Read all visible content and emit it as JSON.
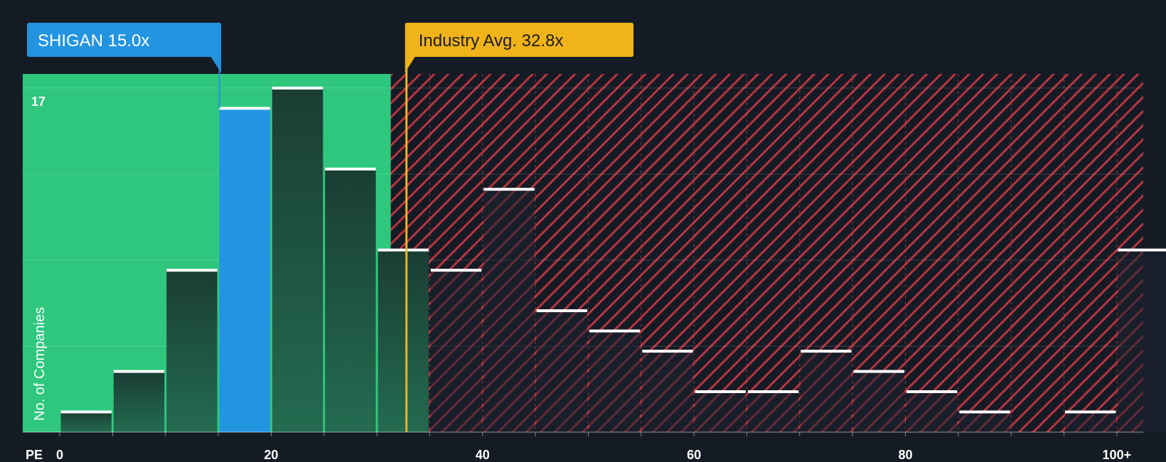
{
  "chart_data": {
    "type": "bar",
    "title": "",
    "xlabel": "PE",
    "ylabel": "No. of Companies",
    "x_ticks": [
      "0",
      "20",
      "40",
      "60",
      "80",
      "100+"
    ],
    "x_tick_values": [
      0,
      20,
      40,
      60,
      80,
      100
    ],
    "xlim": [
      -3.5,
      102.5
    ],
    "ylim": [
      0,
      17.7
    ],
    "y_ticks": [
      {
        "value": 17,
        "label": "17"
      }
    ],
    "gridlines_y": [
      4.25,
      8.5,
      12.75,
      17
    ],
    "bin_width": 5,
    "bins": [
      {
        "start": 0,
        "value": 1
      },
      {
        "start": 5,
        "value": 3
      },
      {
        "start": 10,
        "value": 8
      },
      {
        "start": 15,
        "value": 16,
        "highlight": true
      },
      {
        "start": 20,
        "value": 17
      },
      {
        "start": 25,
        "value": 13
      },
      {
        "start": 30,
        "value": 9
      },
      {
        "start": 35,
        "value": 8
      },
      {
        "start": 40,
        "value": 12
      },
      {
        "start": 45,
        "value": 6
      },
      {
        "start": 50,
        "value": 5
      },
      {
        "start": 55,
        "value": 4
      },
      {
        "start": 60,
        "value": 2
      },
      {
        "start": 65,
        "value": 2
      },
      {
        "start": 70,
        "value": 4
      },
      {
        "start": 75,
        "value": 3
      },
      {
        "start": 80,
        "value": 2
      },
      {
        "start": 85,
        "value": 1
      },
      {
        "start": 90,
        "value": 0
      },
      {
        "start": 95,
        "value": 1
      },
      {
        "start": 100,
        "value": 9
      }
    ],
    "company": {
      "label": "SHIGAN 15.0x",
      "value": 15.0
    },
    "industry": {
      "label": "Industry Avg. 32.8x",
      "value": 32.8
    },
    "colors": {
      "background": "#151b24",
      "fair_zone": "#2ec77d",
      "bar_dark": "#1e4a3c",
      "bar_highlight": "#2394e0",
      "over_zone_stripe": "#b83440",
      "industry_line": "#f0b31a",
      "bar_cap": "#ffffff"
    }
  }
}
